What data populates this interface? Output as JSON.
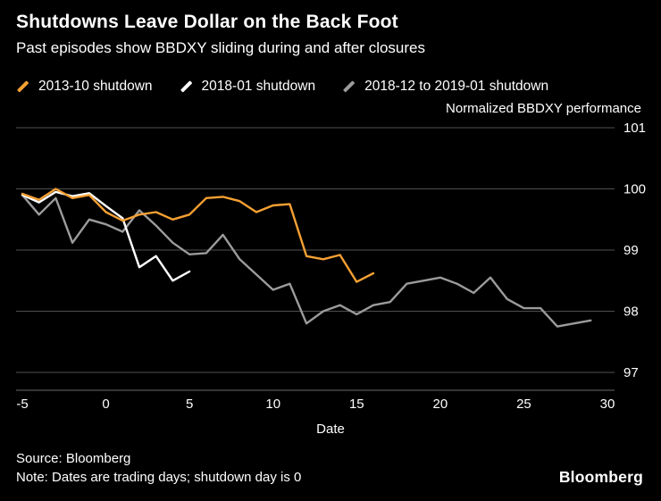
{
  "header": {
    "title": "Shutdowns Leave Dollar on the Back Foot",
    "subtitle": "Past episodes show BBDXY sliding during and after closures"
  },
  "legend": [
    {
      "label": "2013-10 shutdown",
      "color": "#f5a033"
    },
    {
      "label": "2018-01 shutdown",
      "color": "#ffffff"
    },
    {
      "label": "2018-12 to 2019-01 shutdown",
      "color": "#9b9b9b"
    }
  ],
  "axis_title": "Normalized BBDXY performance",
  "footer": {
    "source": "Source: Bloomberg",
    "note": "Note: Dates are trading days; shutdown day is 0",
    "logo": "Bloomberg"
  },
  "chart_data": {
    "type": "line",
    "title": "Shutdowns Leave Dollar on the Back Foot",
    "subtitle": "Past episodes show BBDXY sliding during and after closures",
    "xlabel": "Date",
    "ylabel": "Normalized BBDXY performance",
    "xlim": [
      -5.5,
      31
    ],
    "ylim": [
      96.7,
      101.2
    ],
    "xticks": [
      -5,
      0,
      5,
      10,
      15,
      20,
      25,
      30
    ],
    "yticks": [
      97,
      98,
      99,
      100,
      101
    ],
    "grid": "horizontal",
    "legend_position": "top-left",
    "background": "#000000",
    "gridline_color": "#4f4f4f",
    "series": [
      {
        "name": "2013-10 shutdown",
        "color": "#f5a033",
        "x": [
          -5,
          -4,
          -3,
          -2,
          -1,
          0,
          1,
          2,
          3,
          4,
          5,
          6,
          7,
          8,
          9,
          10,
          11,
          12,
          13,
          14,
          15,
          16
        ],
        "values": [
          99.92,
          99.82,
          100.0,
          99.85,
          99.9,
          99.62,
          99.48,
          99.58,
          99.62,
          99.5,
          99.58,
          99.85,
          99.87,
          99.8,
          99.62,
          99.73,
          99.75,
          98.9,
          98.85,
          98.92,
          98.48,
          98.62
        ]
      },
      {
        "name": "2018-01 shutdown",
        "color": "#ffffff",
        "x": [
          -5,
          -4,
          -3,
          -2,
          -1,
          0,
          1,
          2,
          3,
          4,
          5
        ],
        "values": [
          99.9,
          99.78,
          99.95,
          99.88,
          99.93,
          99.72,
          99.52,
          98.72,
          98.9,
          98.5,
          98.65
        ]
      },
      {
        "name": "2018-12 to 2019-01 shutdown",
        "color": "#9b9b9b",
        "x": [
          -5,
          -4,
          -3,
          -2,
          -1,
          0,
          1,
          2,
          3,
          4,
          5,
          6,
          7,
          8,
          9,
          10,
          11,
          12,
          13,
          14,
          15,
          16,
          17,
          18,
          19,
          20,
          21,
          22,
          23,
          24,
          25,
          26,
          27,
          28,
          29
        ],
        "values": [
          99.9,
          99.58,
          99.85,
          99.12,
          99.5,
          99.42,
          99.3,
          99.65,
          99.4,
          99.12,
          98.93,
          98.95,
          99.25,
          98.85,
          98.6,
          98.35,
          98.45,
          97.8,
          98.0,
          98.1,
          97.95,
          98.1,
          98.15,
          98.45,
          98.5,
          98.55,
          98.45,
          98.3,
          98.55,
          98.2,
          98.05,
          98.05,
          97.75,
          97.8,
          97.85
        ]
      }
    ]
  }
}
